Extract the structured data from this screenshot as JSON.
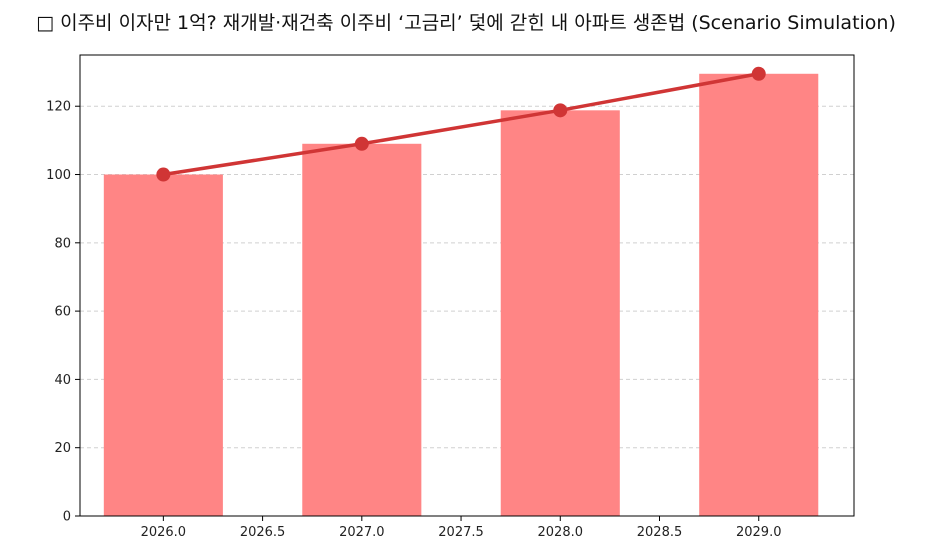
{
  "chart_data": {
    "type": "bar",
    "title": "□ 이주비 이자만 1억? 재개발·재건축 이주비 ‘고금리’ 덫에 갇힌 내 아파트 생존법 (Scenario Simulation)",
    "xlabel": "",
    "ylabel": "",
    "x": [
      2026,
      2027,
      2028,
      2029
    ],
    "series": [
      {
        "type": "bar",
        "values": [
          100,
          109,
          118.8,
          129.5
        ]
      },
      {
        "type": "line",
        "values": [
          100,
          109,
          118.8,
          129.5
        ]
      }
    ],
    "xlim": [
      2025.58,
      2029.48
    ],
    "ylim": [
      0,
      135
    ],
    "xticks": [
      "2026.0",
      "2026.5",
      "2027.0",
      "2027.5",
      "2028.0",
      "2028.5",
      "2029.0"
    ],
    "yticks": [
      "0",
      "20",
      "40",
      "60",
      "80",
      "100",
      "120"
    ],
    "grid": "y, dashed",
    "colors": {
      "bar": "#ff8585",
      "line": "#d03535",
      "grid": "#d0d0d0",
      "axis": "#000000"
    }
  }
}
